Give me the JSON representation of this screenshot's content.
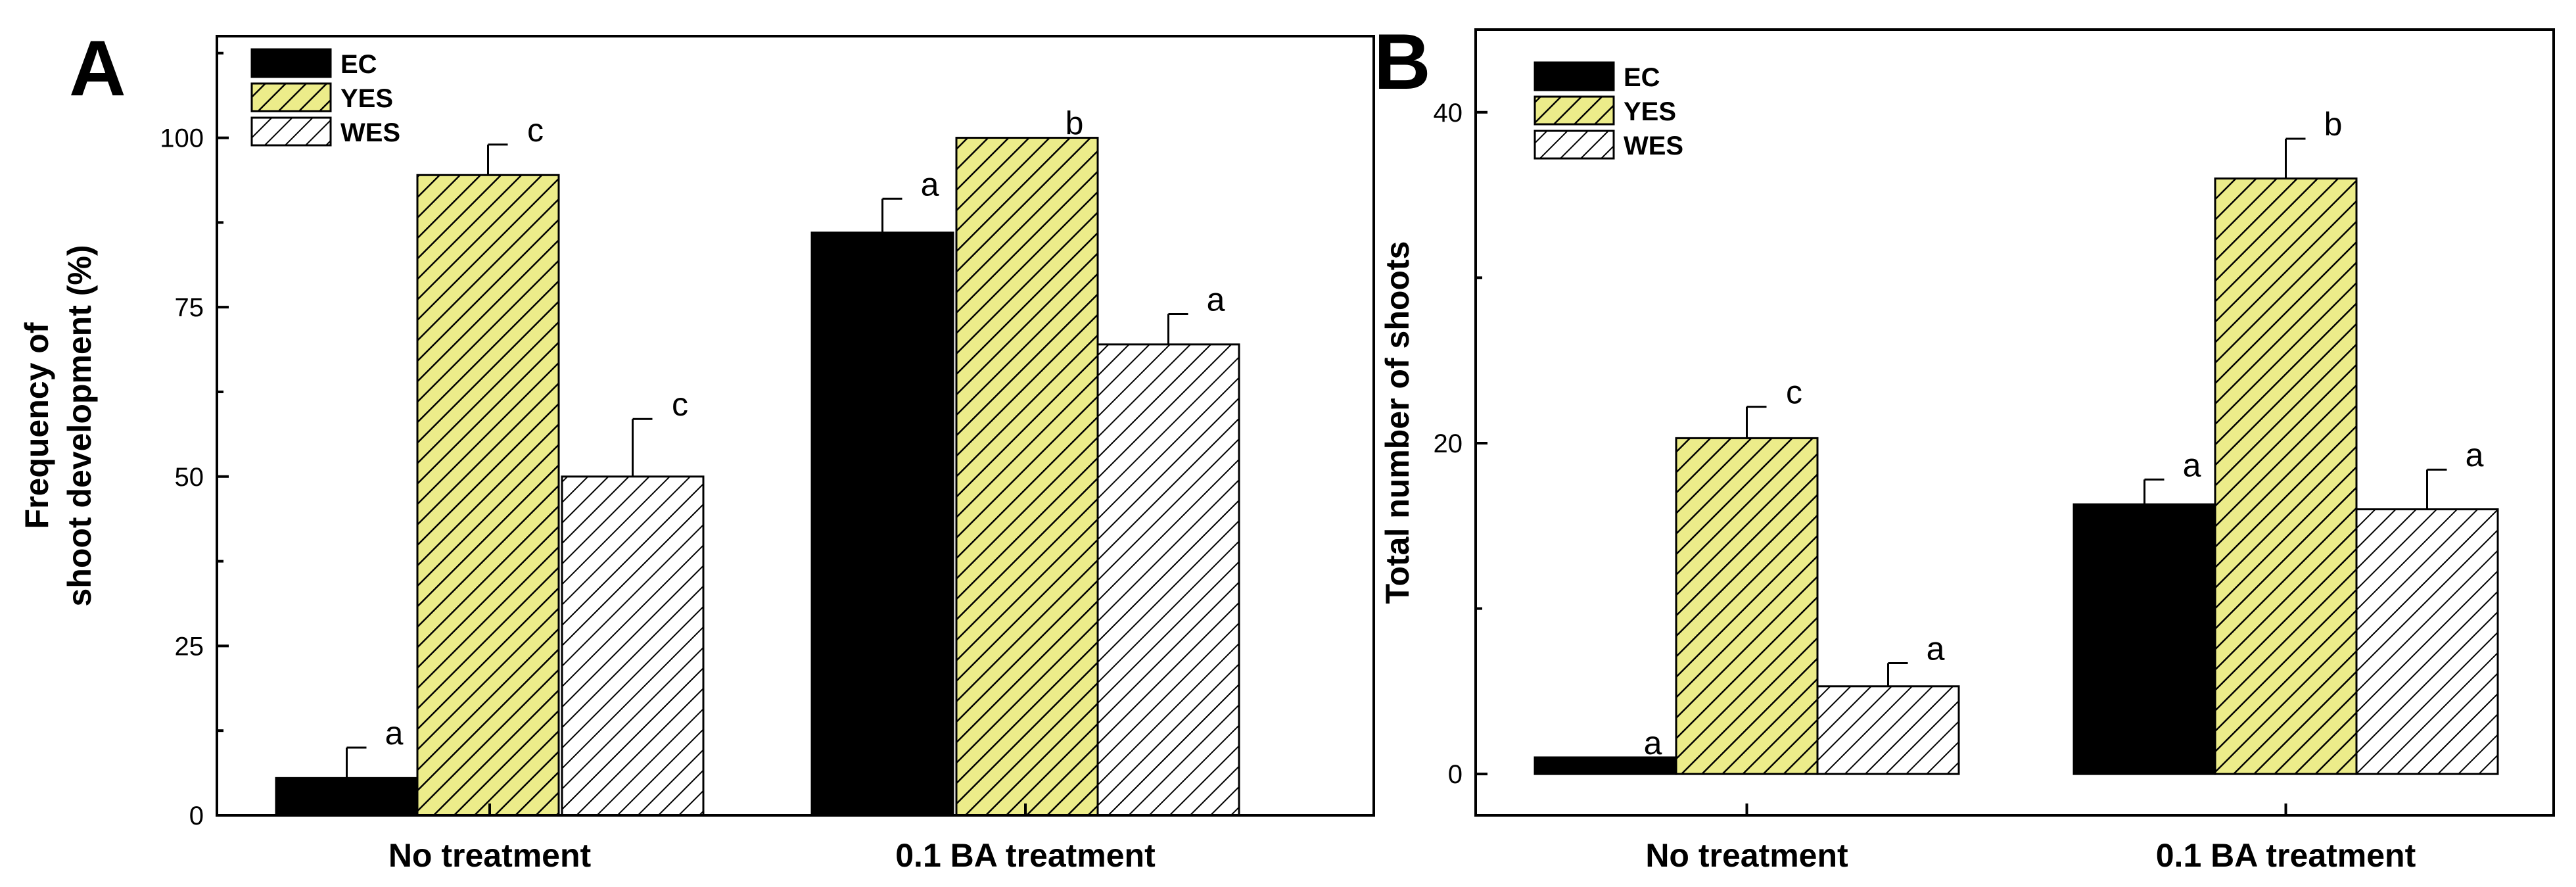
{
  "chart_data": [
    {
      "type": "bar",
      "panel_label": "A",
      "ylabel_lines": [
        "Frequency of",
        "shoot development (%)"
      ],
      "xlabel": "",
      "categories": [
        "No treatment",
        "0.1 BA treatment"
      ],
      "ylim": [
        0,
        115
      ],
      "yticks": [
        0,
        25,
        50,
        75,
        100
      ],
      "legend_position": "top-left",
      "series": [
        {
          "name": "EC",
          "values": [
            5.5,
            86
          ],
          "errors": [
            4.5,
            5
          ],
          "letters": [
            "a",
            "a"
          ],
          "pattern": "solid-black"
        },
        {
          "name": "YES",
          "values": [
            94.5,
            100
          ],
          "errors": [
            4.5,
            0
          ],
          "letters": [
            "c",
            "b"
          ],
          "pattern": "yellow-hatch"
        },
        {
          "name": "WES",
          "values": [
            50,
            69.5
          ],
          "errors": [
            8.5,
            4.5
          ],
          "letters": [
            "c",
            "a"
          ],
          "pattern": "white-hatch"
        }
      ],
      "colors": {
        "yellow": "#ecec8a",
        "black": "#000000",
        "white": "#ffffff"
      }
    },
    {
      "type": "bar",
      "panel_label": "B",
      "ylabel_lines": [
        "Total number of shoots"
      ],
      "xlabel": "",
      "categories": [
        "No treatment",
        "0.1 BA treatment"
      ],
      "ylim": [
        -2.5,
        45
      ],
      "yticks": [
        0,
        20,
        40
      ],
      "legend_position": "top-left",
      "series": [
        {
          "name": "EC",
          "values": [
            1,
            16.3
          ],
          "errors": [
            0,
            1.5
          ],
          "letters": [
            "a",
            "a"
          ],
          "pattern": "solid-black"
        },
        {
          "name": "YES",
          "values": [
            20.3,
            36
          ],
          "errors": [
            1.9,
            2.4
          ],
          "letters": [
            "c",
            "b"
          ],
          "pattern": "yellow-hatch"
        },
        {
          "name": "WES",
          "values": [
            5.3,
            16
          ],
          "errors": [
            1.4,
            2.4
          ],
          "letters": [
            "a",
            "a"
          ],
          "pattern": "white-hatch"
        }
      ],
      "colors": {
        "yellow": "#ecec8a",
        "black": "#000000",
        "white": "#ffffff"
      }
    }
  ]
}
